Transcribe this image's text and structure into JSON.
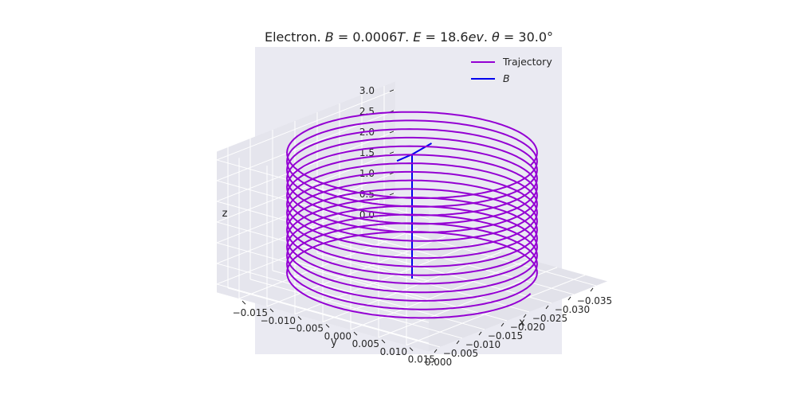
{
  "chart_data": {
    "type": "line3d",
    "title": {
      "prefix": "Electron. ",
      "b_symbol": "B",
      "b_value": " = 0.0006",
      "b_unit": "T",
      "sep1": ". ",
      "e_symbol": "E",
      "e_value": " = 18.6",
      "e_unit": "ev",
      "sep2": ". ",
      "theta_symbol": "θ",
      "theta_value": " = 30.0°"
    },
    "axes": {
      "x": {
        "label": "x",
        "range": [
          -0.015,
          0.015
        ],
        "ticks": [
          -0.015,
          -0.01,
          -0.005,
          0.0,
          0.005,
          0.01,
          0.015
        ],
        "tick_labels": [
          "−0.015",
          "−0.010",
          "−0.005",
          "0.000",
          "0.005",
          "0.010",
          "0.015"
        ]
      },
      "y": {
        "label": "y",
        "range": [
          -0.035,
          0.0
        ],
        "ticks": [
          -0.035,
          -0.03,
          -0.025,
          -0.02,
          -0.015,
          -0.01,
          -0.005,
          0.0
        ],
        "tick_labels": [
          "−0.035",
          "−0.030",
          "−0.025",
          "−0.020",
          "−0.015",
          "−0.010",
          "−0.005",
          "0.000"
        ]
      },
      "z": {
        "label": "z",
        "range": [
          0.0,
          3.0
        ],
        "ticks": [
          0.0,
          0.5,
          1.0,
          1.5,
          2.0,
          2.5,
          3.0
        ],
        "tick_labels": [
          "0.0",
          "0.5",
          "1.0",
          "1.5",
          "2.0",
          "2.5",
          "3.0"
        ]
      }
    },
    "grid": true,
    "legend_position": "top-right",
    "series": [
      {
        "name": "Trajectory",
        "color": "#9400d3",
        "kind": "helix",
        "center": [
          0.0,
          -0.0175
        ],
        "radius": 0.0175,
        "z_range": [
          0.0,
          3.1
        ],
        "turns": 15
      },
      {
        "name": "B",
        "color": "#0000ee",
        "kind": "field-arrow",
        "start": [
          0.0,
          -0.0175,
          0.0
        ],
        "end": [
          0.0,
          -0.0175,
          3.0
        ]
      }
    ]
  }
}
